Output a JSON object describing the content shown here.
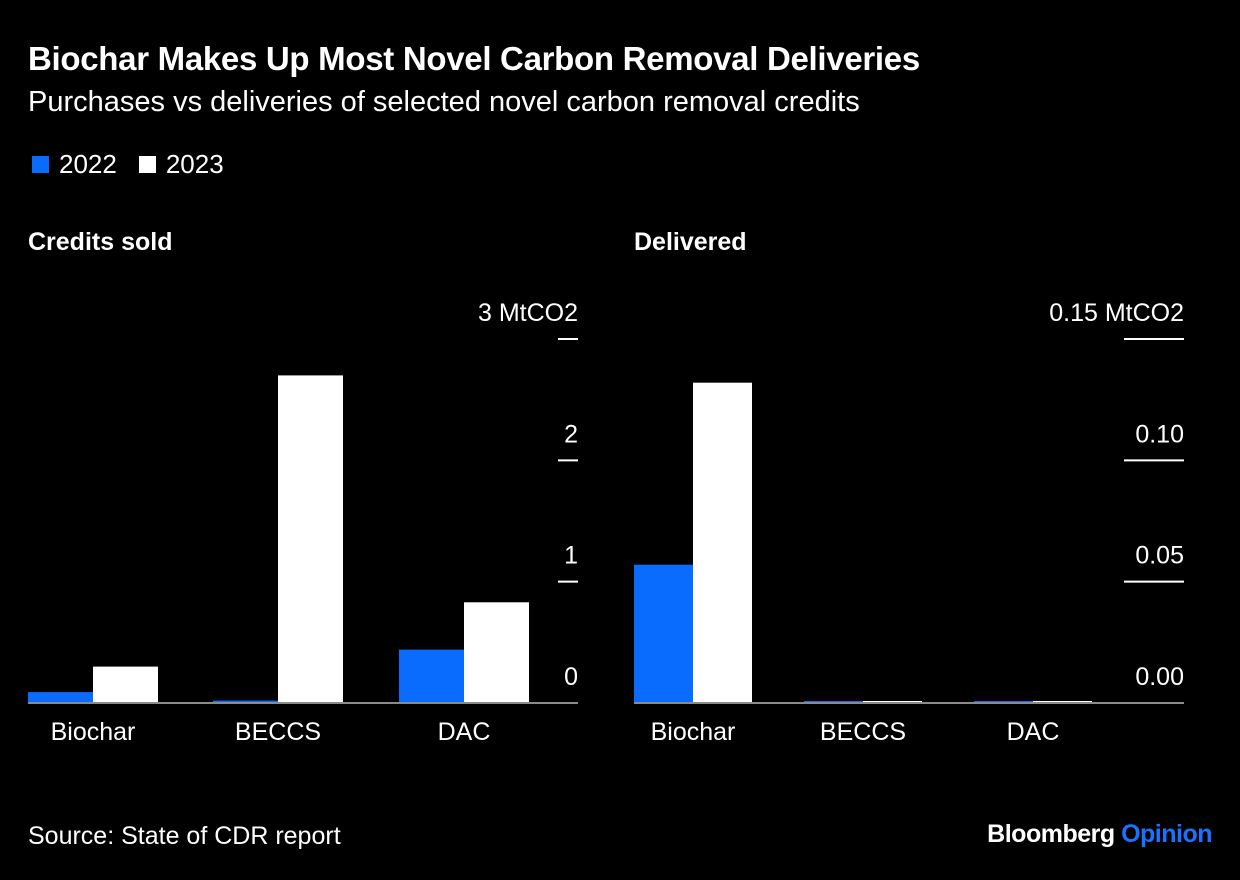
{
  "header": {
    "title": "Biochar Makes Up Most Novel Carbon Removal Deliveries",
    "subtitle": "Purchases vs deliveries of selected novel carbon removal credits"
  },
  "legend": [
    {
      "label": "2022",
      "color": "#0a6cff"
    },
    {
      "label": "2023",
      "color": "#ffffff"
    }
  ],
  "footer": {
    "source": "Source: State of CDR report",
    "brand_bloomberg": "Bloomberg",
    "brand_opinion": "Opinion"
  },
  "chart_data": [
    {
      "type": "bar",
      "title": "Credits sold",
      "categories": [
        "Biochar",
        "BECCS",
        "DAC"
      ],
      "series": [
        {
          "name": "2022",
          "values": [
            0.09,
            0.02,
            0.44
          ]
        },
        {
          "name": "2023",
          "values": [
            0.3,
            2.7,
            0.83
          ]
        }
      ],
      "ylim": [
        0,
        3
      ],
      "yticks": [
        0,
        1,
        2,
        3
      ],
      "ytick_labels": [
        "0",
        "1",
        "2",
        "3 MtCO2"
      ],
      "axis_side": "right",
      "grid": false
    },
    {
      "type": "bar",
      "title": "Delivered",
      "categories": [
        "Biochar",
        "BECCS",
        "DAC"
      ],
      "series": [
        {
          "name": "2022",
          "values": [
            0.057,
            0.0005,
            0.0004
          ]
        },
        {
          "name": "2023",
          "values": [
            0.132,
            0.0004,
            0.0003
          ]
        }
      ],
      "ylim": [
        0,
        0.15
      ],
      "yticks": [
        0,
        0.05,
        0.1,
        0.15
      ],
      "ytick_labels": [
        "0.00",
        "0.05",
        "0.10",
        "0.15 MtCO2"
      ],
      "axis_side": "right",
      "grid": false
    }
  ]
}
